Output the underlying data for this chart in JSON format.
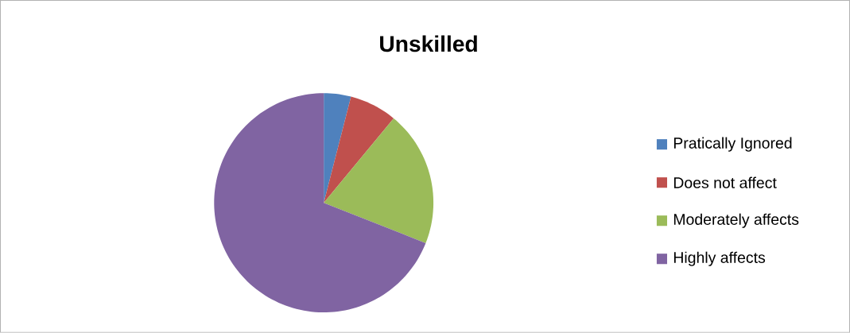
{
  "chart_data": {
    "type": "pie",
    "title": "Unskilled",
    "categories": [
      "Pratically Ignored",
      "Does not affect",
      "Moderately affects",
      "Highly affects"
    ],
    "values": [
      4,
      7,
      20,
      69
    ],
    "colors": [
      "#4f81bd",
      "#c0504d",
      "#9bbb59",
      "#8064a2"
    ],
    "legend": "right"
  }
}
